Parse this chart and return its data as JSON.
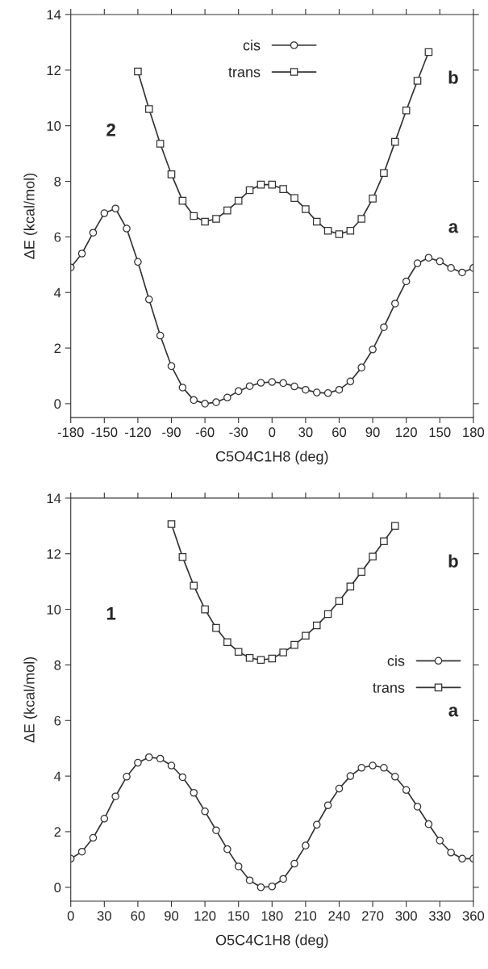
{
  "chart_data": [
    {
      "type": "line",
      "xlabel": "C5O4C1H8 (deg)",
      "ylabel": "ΔE (kcal/mol)",
      "xlim": [
        -180,
        180
      ],
      "xticks": [
        -180,
        -150,
        -120,
        -90,
        -60,
        -30,
        0,
        30,
        60,
        90,
        120,
        150,
        180
      ],
      "ylim": [
        -0.5,
        14
      ],
      "yticks": [
        0,
        2,
        4,
        6,
        8,
        10,
        12,
        14
      ],
      "grid": false,
      "legend": "top",
      "annotations": [
        "2",
        "b",
        "a"
      ],
      "series": [
        {
          "name": "cis",
          "color": "#333333",
          "marker": "circle",
          "x": [
            -180,
            -170,
            -160,
            -150,
            -140,
            -130,
            -120,
            -110,
            -100,
            -90,
            -80,
            -70,
            -60,
            -50,
            -40,
            -30,
            -20,
            -10,
            0,
            10,
            20,
            30,
            40,
            50,
            60,
            70,
            80,
            90,
            100,
            110,
            120,
            130,
            140,
            150,
            160,
            170,
            180
          ],
          "values": [
            4.9,
            5.4,
            6.15,
            6.85,
            7.02,
            6.3,
            5.1,
            3.75,
            2.45,
            1.35,
            0.58,
            0.13,
            0.0,
            0.05,
            0.22,
            0.45,
            0.63,
            0.75,
            0.78,
            0.74,
            0.62,
            0.5,
            0.4,
            0.38,
            0.5,
            0.8,
            1.3,
            1.95,
            2.75,
            3.6,
            4.4,
            5.05,
            5.25,
            5.12,
            4.88,
            4.72,
            4.88
          ]
        },
        {
          "name": "trans",
          "color": "#333333",
          "marker": "square",
          "x": [
            -120,
            -110,
            -100,
            -90,
            -80,
            -70,
            -60,
            -50,
            -40,
            -30,
            -20,
            -10,
            0,
            10,
            20,
            30,
            40,
            50,
            60,
            70,
            80,
            90,
            100,
            110,
            120,
            130,
            140
          ],
          "values": [
            11.95,
            10.6,
            9.35,
            8.25,
            7.3,
            6.75,
            6.55,
            6.65,
            6.95,
            7.3,
            7.68,
            7.88,
            7.88,
            7.72,
            7.4,
            7.0,
            6.55,
            6.22,
            6.1,
            6.22,
            6.65,
            7.38,
            8.3,
            9.42,
            10.55,
            11.62,
            12.65
          ]
        }
      ]
    },
    {
      "type": "line",
      "xlabel": "O5C4C1H8 (deg)",
      "ylabel": "ΔE (kcal/mol)",
      "xlim": [
        0,
        360
      ],
      "xticks": [
        0,
        30,
        60,
        90,
        120,
        150,
        180,
        210,
        240,
        270,
        300,
        330,
        360
      ],
      "ylim": [
        -0.5,
        14
      ],
      "yticks": [
        0,
        2,
        4,
        6,
        8,
        10,
        12,
        14
      ],
      "grid": false,
      "legend": "right",
      "annotations": [
        "1",
        "b",
        "a"
      ],
      "series": [
        {
          "name": "cis",
          "color": "#333333",
          "marker": "circle",
          "x": [
            0,
            10,
            20,
            30,
            40,
            50,
            60,
            70,
            80,
            90,
            100,
            110,
            120,
            130,
            140,
            150,
            160,
            170,
            180,
            190,
            200,
            210,
            220,
            230,
            240,
            250,
            260,
            270,
            280,
            290,
            300,
            310,
            320,
            330,
            340,
            350,
            360
          ],
          "values": [
            1.03,
            1.28,
            1.78,
            2.47,
            3.27,
            3.98,
            4.48,
            4.68,
            4.63,
            4.38,
            3.96,
            3.4,
            2.73,
            2.05,
            1.37,
            0.75,
            0.25,
            0.0,
            0.03,
            0.3,
            0.85,
            1.5,
            2.25,
            2.95,
            3.55,
            4.0,
            4.3,
            4.38,
            4.3,
            3.98,
            3.5,
            2.9,
            2.27,
            1.68,
            1.25,
            1.03,
            1.03
          ]
        },
        {
          "name": "trans",
          "color": "#333333",
          "marker": "square",
          "x": [
            90,
            100,
            110,
            120,
            130,
            140,
            150,
            160,
            170,
            180,
            190,
            200,
            210,
            220,
            230,
            240,
            250,
            260,
            270,
            280,
            290
          ],
          "values": [
            13.07,
            11.88,
            10.85,
            10.0,
            9.33,
            8.82,
            8.47,
            8.25,
            8.18,
            8.23,
            8.45,
            8.72,
            9.05,
            9.42,
            9.83,
            10.3,
            10.82,
            11.35,
            11.9,
            12.45,
            13.0
          ]
        }
      ]
    }
  ]
}
